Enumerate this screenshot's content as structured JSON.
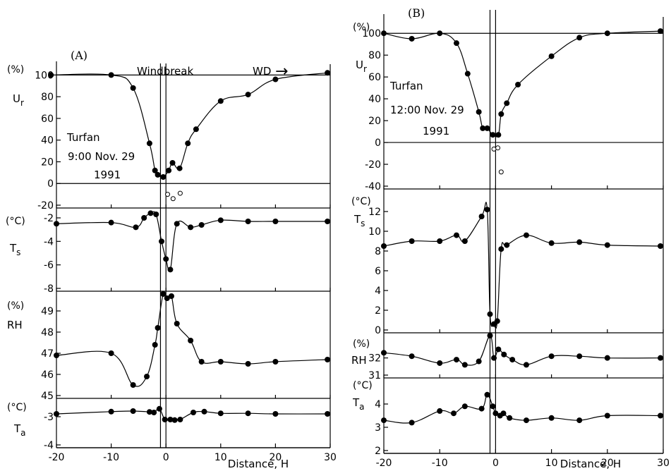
{
  "figure": {
    "windbreak_label": "Windbreak",
    "wd_label": "WD",
    "wd_arrow": "→"
  },
  "chart_data": [
    {
      "panel": "A",
      "type": "line",
      "label": "(A)",
      "annotation": [
        "Turfan",
        "9:00 Nov. 29",
        "1991"
      ],
      "xlabel": "Distance, H",
      "xlim": [
        -20,
        30
      ],
      "xticks": [
        "-20",
        "-10",
        "0",
        "10",
        "20",
        "30"
      ],
      "windbreak_x": [
        -1,
        0
      ],
      "subplots": [
        {
          "variable": "Ur",
          "unit": "(%)",
          "ylim": [
            -20,
            110
          ],
          "yticks": [
            "100",
            "80",
            "60",
            "40",
            "20",
            "0",
            "-20"
          ],
          "filled": [
            [
              -21,
              100
            ],
            [
              -10,
              100
            ],
            [
              -6,
              88
            ],
            [
              -3,
              37
            ],
            [
              -2,
              12
            ],
            [
              -1.5,
              8
            ],
            [
              -0.5,
              6
            ],
            [
              0.5,
              12
            ],
            [
              1.2,
              19
            ],
            [
              2.5,
              14
            ],
            [
              4,
              37
            ],
            [
              5.5,
              50
            ],
            [
              10,
              76
            ],
            [
              15,
              82
            ],
            [
              20,
              96
            ],
            [
              29.5,
              102
            ]
          ],
          "open": [
            [
              0.3,
              -10
            ],
            [
              1.3,
              -14
            ],
            [
              2.6,
              -9
            ]
          ]
        },
        {
          "variable": "Ts",
          "unit": "(°C)",
          "ylim": [
            -8,
            -1.4
          ],
          "yticks": [
            "-2",
            "-4",
            "-6",
            "-8"
          ],
          "filled": [
            [
              -20,
              -2.5
            ],
            [
              -10,
              -2.4
            ],
            [
              -5.5,
              -2.8
            ],
            [
              -4,
              -2
            ],
            [
              -2.8,
              -1.6
            ],
            [
              -1.8,
              -1.7
            ],
            [
              -0.8,
              -4
            ],
            [
              0,
              -5.5
            ],
            [
              0.8,
              -6.4
            ],
            [
              2,
              -2.5
            ],
            [
              4.5,
              -2.8
            ],
            [
              6.5,
              -2.6
            ],
            [
              10,
              -2.2
            ],
            [
              15,
              -2.3
            ],
            [
              20,
              -2.3
            ],
            [
              29.5,
              -2.3
            ]
          ],
          "open": []
        },
        {
          "variable": "RH",
          "unit": "(%)",
          "ylim": [
            45,
            49.8
          ],
          "yticks": [
            "49",
            "48",
            "47",
            "46",
            "45"
          ],
          "filled": [
            [
              -20,
              46.9
            ],
            [
              -10,
              47
            ],
            [
              -6,
              45.5
            ],
            [
              -3.5,
              45.9
            ],
            [
              -2,
              47.4
            ],
            [
              -1.5,
              48.2
            ],
            [
              -0.5,
              49.8
            ],
            [
              0.2,
              49.6
            ],
            [
              1,
              49.7
            ],
            [
              2,
              48.4
            ],
            [
              4.5,
              47.6
            ],
            [
              6.5,
              46.6
            ],
            [
              10,
              46.6
            ],
            [
              15,
              46.5
            ],
            [
              20,
              46.6
            ],
            [
              29.5,
              46.7
            ]
          ],
          "open": []
        },
        {
          "variable": "Ta",
          "unit": "(°C)",
          "ylim": [
            -4,
            -2.45
          ],
          "yticks": [
            "-3",
            "-4"
          ],
          "filled": [
            [
              -20,
              -2.9
            ],
            [
              -10,
              -2.82
            ],
            [
              -6,
              -2.8
            ],
            [
              -3,
              -2.83
            ],
            [
              -2.2,
              -2.85
            ],
            [
              -1.2,
              -2.72
            ],
            [
              -0.2,
              -3.1
            ],
            [
              0.8,
              -3.1
            ],
            [
              1.6,
              -3.12
            ],
            [
              2.6,
              -3.1
            ],
            [
              5,
              -2.85
            ],
            [
              7,
              -2.82
            ],
            [
              10,
              -2.88
            ],
            [
              15,
              -2.88
            ],
            [
              20,
              -2.9
            ],
            [
              29.5,
              -2.9
            ]
          ],
          "open": []
        }
      ]
    },
    {
      "panel": "B",
      "type": "line",
      "label": "(B)",
      "annotation": [
        "Turfan",
        "12:00 Nov. 29",
        "1991"
      ],
      "xlabel": "Distance, H",
      "xlim": [
        -20,
        30
      ],
      "xticks": [
        "-20",
        "-10",
        "0",
        "10",
        "20",
        "30"
      ],
      "windbreak_x": [
        -1,
        0
      ],
      "subplots": [
        {
          "variable": "Ur",
          "unit": "(%)",
          "ylim": [
            -40,
            115
          ],
          "yticks": [
            "100",
            "80",
            "60",
            "40",
            "20",
            "0",
            "-20",
            "-40"
          ],
          "filled": [
            [
              -20,
              100
            ],
            [
              -15,
              95
            ],
            [
              -10,
              100
            ],
            [
              -7,
              91
            ],
            [
              -5,
              63
            ],
            [
              -3,
              28
            ],
            [
              -2.3,
              13
            ],
            [
              -1.5,
              13
            ],
            [
              -0.5,
              7
            ],
            [
              0.5,
              7
            ],
            [
              1,
              26
            ],
            [
              2,
              36
            ],
            [
              4,
              53
            ],
            [
              10,
              79
            ],
            [
              15,
              96
            ],
            [
              20,
              100
            ],
            [
              29.5,
              102
            ]
          ],
          "open": [
            [
              -0.3,
              -6
            ],
            [
              0.4,
              -5
            ],
            [
              1,
              -27
            ]
          ]
        },
        {
          "variable": "Ts",
          "unit": "(°C)",
          "ylim": [
            0,
            14
          ],
          "yticks": [
            "12",
            "10",
            "8",
            "6",
            "4",
            "2",
            "0"
          ],
          "filled": [
            [
              -20,
              8.5
            ],
            [
              -15,
              9
            ],
            [
              -10,
              9
            ],
            [
              -7,
              9.6
            ],
            [
              -5.5,
              9
            ],
            [
              -2.5,
              11.5
            ],
            [
              -1.5,
              12.2
            ],
            [
              -1,
              1.6
            ],
            [
              -0.3,
              0.6
            ],
            [
              0.3,
              0.9
            ],
            [
              1,
              8.2
            ],
            [
              2,
              8.6
            ],
            [
              5.5,
              9.6
            ],
            [
              10,
              8.8
            ],
            [
              15,
              8.9
            ],
            [
              20,
              8.6
            ],
            [
              29.5,
              8.5
            ]
          ],
          "open": []
        },
        {
          "variable": "RH",
          "unit": "(%)",
          "ylim": [
            31,
            33.3
          ],
          "yticks": [
            "32",
            "31"
          ],
          "filled": [
            [
              -20,
              32.3
            ],
            [
              -15,
              32.1
            ],
            [
              -10,
              31.7
            ],
            [
              -7,
              31.9
            ],
            [
              -5.5,
              31.6
            ],
            [
              -3,
              31.8
            ],
            [
              -1,
              33.3
            ],
            [
              -0.3,
              32
            ],
            [
              0.5,
              32.5
            ],
            [
              1.5,
              32.2
            ],
            [
              3,
              31.9
            ],
            [
              5.5,
              31.6
            ],
            [
              10,
              32.1
            ],
            [
              15,
              32.1
            ],
            [
              20,
              32
            ],
            [
              29.5,
              32
            ]
          ],
          "open": []
        },
        {
          "variable": "Ta",
          "unit": "(°C)",
          "ylim": [
            2,
            5
          ],
          "yticks": [
            "4",
            "3",
            "2"
          ],
          "filled": [
            [
              -20,
              3.3
            ],
            [
              -15,
              3.2
            ],
            [
              -10,
              3.7
            ],
            [
              -7.5,
              3.6
            ],
            [
              -5.5,
              3.9
            ],
            [
              -2.5,
              3.8
            ],
            [
              -1.5,
              4.4
            ],
            [
              -0.5,
              3.9
            ],
            [
              0,
              3.6
            ],
            [
              0.8,
              3.5
            ],
            [
              1.4,
              3.6
            ],
            [
              2.5,
              3.4
            ],
            [
              5.5,
              3.3
            ],
            [
              10,
              3.4
            ],
            [
              15,
              3.3
            ],
            [
              20,
              3.5
            ],
            [
              29.5,
              3.5
            ]
          ],
          "open": []
        }
      ]
    }
  ]
}
